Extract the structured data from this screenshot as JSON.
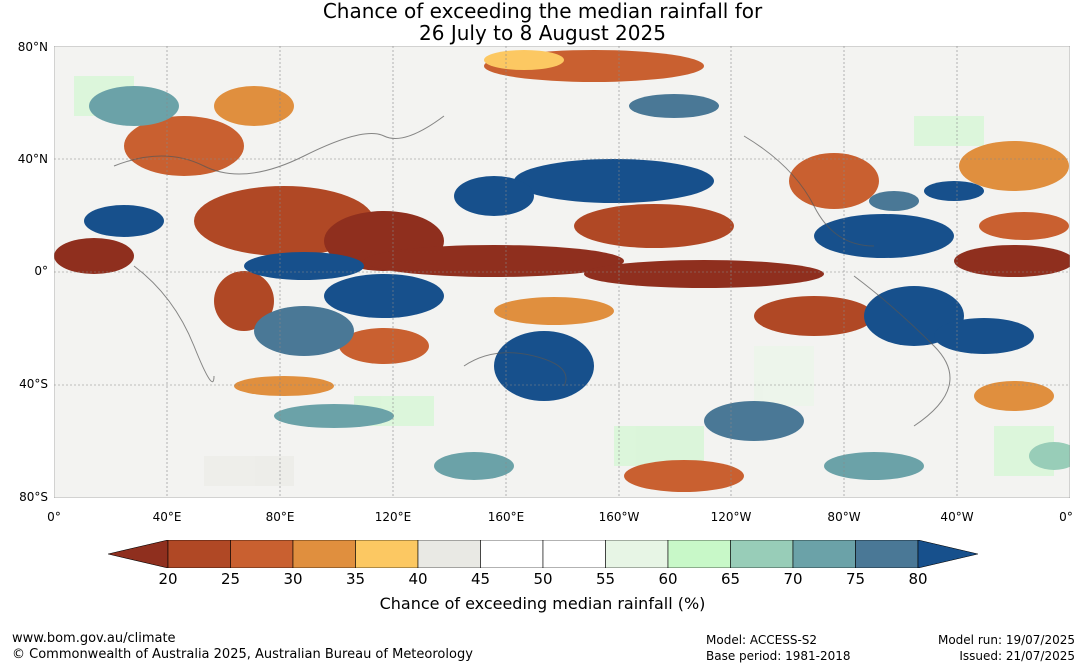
{
  "title": {
    "line1": "Chance of exceeding the median rainfall for",
    "line2": "26 July to 8 August 2025"
  },
  "lat_labels": [
    "80°N",
    "40°N",
    "0°",
    "40°S",
    "80°S"
  ],
  "lon_labels": [
    "0°",
    "40°E",
    "80°E",
    "120°E",
    "160°E",
    "160°W",
    "120°W",
    "80°W",
    "40°W",
    "0°"
  ],
  "colorbar": {
    "ticks": [
      "20",
      "25",
      "30",
      "35",
      "40",
      "45",
      "50",
      "55",
      "60",
      "65",
      "70",
      "75",
      "80"
    ],
    "label": "Chance of exceeding median rainfall (%)",
    "colors": {
      "below_20": "#8f2f1e",
      "20_25": "#b04825",
      "25_30": "#c96030",
      "30_35": "#e08f3e",
      "35_40": "#fcc862",
      "40_45": "#e9e9e4",
      "45_50": "#ffffff",
      "50_55": "#ffffff",
      "55_60": "#e7f5e5",
      "60_65": "#c8f8c8",
      "65_70": "#98cdb8",
      "70_75": "#6ba2a8",
      "75_80": "#4a7896",
      "above_80": "#17508c"
    }
  },
  "footer": {
    "website": "www.bom.gov.au/climate",
    "copyright": "© Commonwealth of Australia 2025, Australian Bureau of Meteorology",
    "model": "Model: ACCESS-S2",
    "base_period": "Base period: 1981-2018",
    "model_run": "Model run: 19/07/2025",
    "issued": "Issued: 21/07/2025"
  }
}
